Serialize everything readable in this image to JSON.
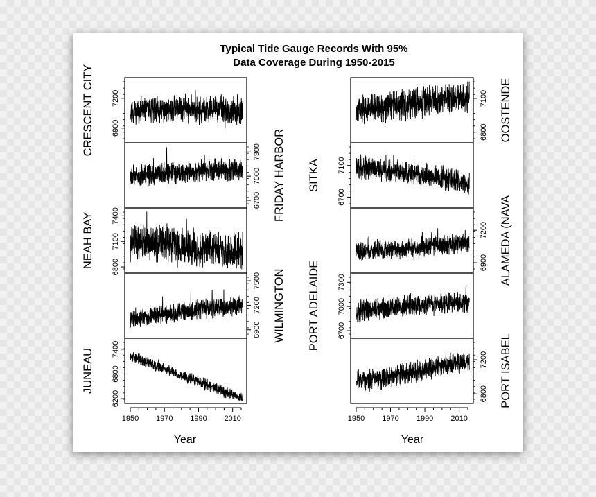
{
  "chart_data": {
    "type": "line",
    "title": "Typical Tide Gauge Records With 95%",
    "subtitle": "Data Coverage During 1950-2015",
    "xlabel": "Year",
    "x_ticks": [
      1950,
      1970,
      1990,
      2010
    ],
    "xlim": [
      1948,
      2018
    ],
    "columns": [
      {
        "panels": [
          {
            "name": "CRESCENT CITY",
            "axis_side": "left",
            "yticks": [
              "6900",
              "7200"
            ],
            "ylim": [
              6780,
              7380
            ],
            "points": [
              [
                1950,
                7060
              ],
              [
                1960,
                7100
              ],
              [
                1970,
                7070
              ],
              [
                1980,
                7110
              ],
              [
                1990,
                7060
              ],
              [
                2000,
                7110
              ],
              [
                2010,
                7050
              ],
              [
                2015,
                7060
              ]
            ],
            "noise": 190,
            "seed": 11
          },
          {
            "name": "FRIDAY HARBOR",
            "axis_side": "right",
            "yticks": [
              "6700",
              "7000",
              "7300"
            ],
            "ylim": [
              6640,
              7380
            ],
            "points": [
              [
                1950,
                7010
              ],
              [
                1960,
                7020
              ],
              [
                1970,
                7040
              ],
              [
                1980,
                7040
              ],
              [
                1990,
                7070
              ],
              [
                2000,
                7080
              ],
              [
                2010,
                7080
              ],
              [
                2015,
                7090
              ]
            ],
            "noise": 200,
            "seed": 23
          },
          {
            "name": "NEAH BAY",
            "axis_side": "left",
            "yticks": [
              "6800",
              "7100",
              "7400"
            ],
            "ylim": [
              6760,
              7460
            ],
            "points": [
              [
                1950,
                7090
              ],
              [
                1960,
                7080
              ],
              [
                1970,
                7060
              ],
              [
                1980,
                7040
              ],
              [
                1990,
                7030
              ],
              [
                2000,
                7010
              ],
              [
                2010,
                6990
              ],
              [
                2015,
                6990
              ]
            ],
            "noise": 320,
            "seed": 37
          },
          {
            "name": "WILMINGTON",
            "axis_side": "right",
            "yticks": [
              "6900",
              "7200",
              "7500"
            ],
            "ylim": [
              6830,
              7560
            ],
            "points": [
              [
                1950,
                7040
              ],
              [
                1960,
                7060
              ],
              [
                1970,
                7090
              ],
              [
                1980,
                7120
              ],
              [
                1990,
                7140
              ],
              [
                2000,
                7170
              ],
              [
                2010,
                7190
              ],
              [
                2015,
                7210
              ]
            ],
            "noise": 170,
            "seed": 41
          },
          {
            "name": "JUNEAU",
            "axis_side": "left",
            "yticks": [
              "6200",
              "6800",
              "7400"
            ],
            "ylim": [
              6150,
              7600
            ],
            "points": [
              [
                1950,
                7240
              ],
              [
                1960,
                7080
              ],
              [
                1970,
                6920
              ],
              [
                1980,
                6760
              ],
              [
                1990,
                6610
              ],
              [
                2000,
                6450
              ],
              [
                2010,
                6300
              ],
              [
                2015,
                6230
              ]
            ],
            "noise": 200,
            "seed": 53
          }
        ]
      },
      {
        "panels": [
          {
            "name": "OOSTENDE",
            "axis_side": "right",
            "yticks": [
              "6800",
              "7100"
            ],
            "ylim": [
              6730,
              7260
            ],
            "points": [
              [
                1950,
                6990
              ],
              [
                1960,
                7010
              ],
              [
                1970,
                7030
              ],
              [
                1980,
                7040
              ],
              [
                1990,
                7070
              ],
              [
                2000,
                7090
              ],
              [
                2010,
                7100
              ],
              [
                2015,
                7110
              ]
            ],
            "noise": 190,
            "seed": 61
          },
          {
            "name": "SITKA",
            "axis_side": "left",
            "yticks": [
              "6700",
              "7100"
            ],
            "ylim": [
              6600,
              7350
            ],
            "points": [
              [
                1950,
                7080
              ],
              [
                1960,
                7060
              ],
              [
                1970,
                7040
              ],
              [
                1980,
                7010
              ],
              [
                1990,
                6980
              ],
              [
                2000,
                6950
              ],
              [
                2010,
                6900
              ],
              [
                2015,
                6880
              ]
            ],
            "noise": 210,
            "seed": 73
          },
          {
            "name": "ALAMEDA (NAVA",
            "axis_side": "right",
            "yticks": [
              "6900",
              "7200"
            ],
            "ylim": [
              6830,
              7380
            ],
            "points": [
              [
                1950,
                7000
              ],
              [
                1960,
                7010
              ],
              [
                1970,
                7020
              ],
              [
                1980,
                7030
              ],
              [
                1990,
                7050
              ],
              [
                2000,
                7060
              ],
              [
                2010,
                7070
              ],
              [
                2015,
                7080
              ]
            ],
            "noise": 130,
            "seed": 89
          },
          {
            "name": "PORT ADELAIDE",
            "axis_side": "left",
            "yticks": [
              "6700",
              "7000",
              "7300"
            ],
            "ylim": [
              6640,
              7380
            ],
            "points": [
              [
                1950,
                6940
              ],
              [
                1960,
                6960
              ],
              [
                1970,
                6980
              ],
              [
                1980,
                7000
              ],
              [
                1990,
                7020
              ],
              [
                2000,
                7040
              ],
              [
                2010,
                7050
              ],
              [
                2015,
                7060
              ]
            ],
            "noise": 190,
            "seed": 97
          },
          {
            "name": "PORT ISABEL",
            "axis_side": "right",
            "yticks": [
              "6800",
              "7200"
            ],
            "ylim": [
              6720,
              7420
            ],
            "points": [
              [
                1950,
                6950
              ],
              [
                1960,
                6960
              ],
              [
                1970,
                7000
              ],
              [
                1980,
                7040
              ],
              [
                1990,
                7090
              ],
              [
                2000,
                7130
              ],
              [
                2010,
                7160
              ],
              [
                2015,
                7170
              ]
            ],
            "noise": 180,
            "seed": 103
          }
        ]
      }
    ]
  }
}
